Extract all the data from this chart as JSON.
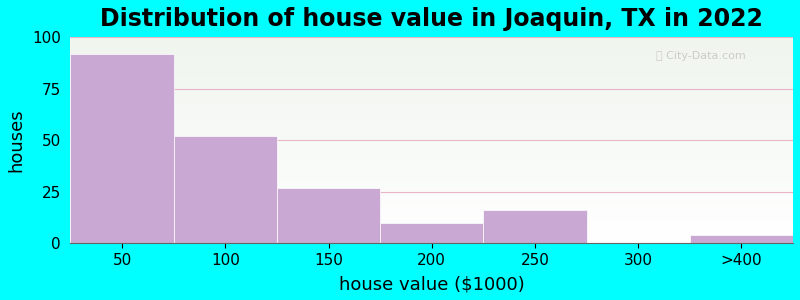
{
  "title": "Distribution of house value in Joaquin, TX in 2022",
  "xlabel": "house value ($1000)",
  "ylabel": "houses",
  "bar_labels": [
    "50",
    "100",
    "150",
    "200",
    "250",
    "300",
    ">400"
  ],
  "bar_values": [
    92,
    52,
    27,
    10,
    16,
    0,
    4
  ],
  "bar_color": "#C9A8D4",
  "ylim": [
    0,
    100
  ],
  "yticks": [
    0,
    25,
    50,
    75,
    100
  ],
  "background_outer": "#00FFFF",
  "grid_color": "#e8b4c8",
  "title_fontsize": 17,
  "axis_fontsize": 13,
  "tick_fontsize": 11
}
